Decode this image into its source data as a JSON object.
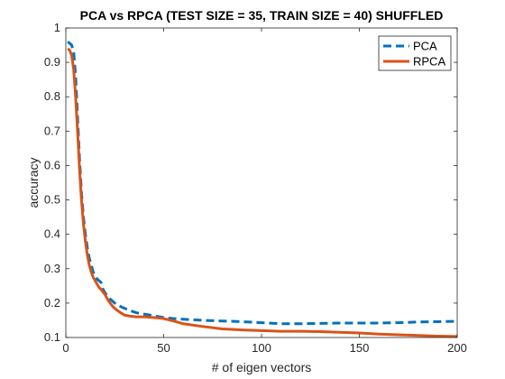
{
  "chart_data": {
    "type": "line",
    "title": "PCA vs RPCA (TEST SIZE = 35, TRAIN SIZE = 40) SHUFFLED",
    "xlabel": "# of eigen vectors",
    "ylabel": "accuracy",
    "xlim": [
      0,
      200
    ],
    "ylim": [
      0.1,
      1
    ],
    "xticks": [
      0,
      50,
      100,
      150,
      200
    ],
    "xtick_labels": [
      "0",
      "50",
      "100",
      "150",
      "200"
    ],
    "yticks": [
      0.1,
      0.2,
      0.3,
      0.4,
      0.5,
      0.6,
      0.7,
      0.8,
      0.9,
      1
    ],
    "ytick_labels": [
      "0.1",
      "0.2",
      "0.3",
      "0.4",
      "0.5",
      "0.6",
      "0.7",
      "0.8",
      "0.9",
      "1"
    ],
    "grid": false,
    "legend_position": "top-right",
    "series": [
      {
        "name": "PCA",
        "color": "#0072BD",
        "style": "dashed",
        "x": [
          1,
          2,
          3,
          4,
          5,
          6,
          7,
          8,
          9,
          10,
          11,
          12,
          13,
          14,
          15,
          16,
          17,
          18,
          19,
          20,
          22,
          24,
          26,
          28,
          30,
          33,
          36,
          40,
          45,
          50,
          55,
          60,
          70,
          80,
          90,
          100,
          110,
          120,
          130,
          140,
          150,
          160,
          170,
          180,
          190,
          200
        ],
        "values": [
          0.96,
          0.955,
          0.95,
          0.93,
          0.86,
          0.74,
          0.62,
          0.52,
          0.45,
          0.4,
          0.36,
          0.33,
          0.31,
          0.29,
          0.28,
          0.27,
          0.265,
          0.26,
          0.24,
          0.23,
          0.215,
          0.205,
          0.195,
          0.19,
          0.185,
          0.178,
          0.172,
          0.168,
          0.163,
          0.158,
          0.155,
          0.153,
          0.15,
          0.148,
          0.146,
          0.143,
          0.14,
          0.14,
          0.141,
          0.142,
          0.142,
          0.142,
          0.143,
          0.145,
          0.146,
          0.147
        ]
      },
      {
        "name": "RPCA",
        "color": "#D95319",
        "style": "solid",
        "x": [
          1,
          2,
          3,
          4,
          5,
          6,
          7,
          8,
          9,
          10,
          11,
          12,
          13,
          14,
          15,
          16,
          17,
          18,
          19,
          20,
          22,
          24,
          26,
          28,
          30,
          33,
          36,
          40,
          45,
          50,
          55,
          60,
          70,
          80,
          90,
          100,
          110,
          120,
          130,
          140,
          150,
          160,
          170,
          180,
          190,
          200
        ],
        "values": [
          0.94,
          0.935,
          0.92,
          0.88,
          0.8,
          0.7,
          0.59,
          0.5,
          0.43,
          0.38,
          0.34,
          0.31,
          0.29,
          0.275,
          0.265,
          0.255,
          0.245,
          0.24,
          0.232,
          0.225,
          0.205,
          0.19,
          0.18,
          0.172,
          0.165,
          0.162,
          0.16,
          0.16,
          0.158,
          0.155,
          0.148,
          0.14,
          0.132,
          0.125,
          0.122,
          0.12,
          0.118,
          0.118,
          0.117,
          0.115,
          0.113,
          0.11,
          0.108,
          0.106,
          0.104,
          0.103
        ]
      }
    ]
  }
}
